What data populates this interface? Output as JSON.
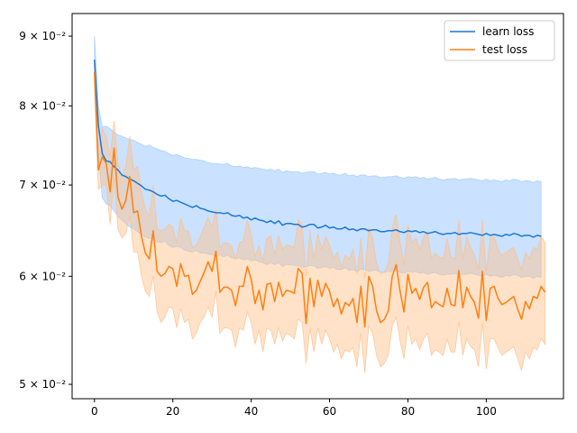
{
  "chart_data": {
    "type": "line",
    "title": "",
    "xlabel": "",
    "ylabel": "",
    "xlim": [
      -5.7,
      119.7
    ],
    "ylim": [
      0.0488,
      0.0935
    ],
    "yscale": "log",
    "grid": false,
    "legend_position": "top-right",
    "x_ticks": [
      0,
      20,
      40,
      60,
      80,
      100
    ],
    "y_ticks": [
      {
        "value": 0.05,
        "label": "5 × 10⁻²"
      },
      {
        "value": 0.06,
        "label": "6 × 10⁻²"
      },
      {
        "value": 0.07,
        "label": "7 × 10⁻²"
      },
      {
        "value": 0.08,
        "label": "8 × 10⁻²"
      },
      {
        "value": 0.09,
        "label": "9 × 10⁻²"
      }
    ],
    "series": [
      {
        "name": "learn loss",
        "color": "#1f77d4",
        "band_color": "#9ecbff",
        "band_opacity": 0.55,
        "x_start": 0,
        "values": [
          0.0865,
          0.0774,
          0.0738,
          0.0729,
          0.0728,
          0.0722,
          0.0718,
          0.0712,
          0.071,
          0.0707,
          0.0705,
          0.0702,
          0.0699,
          0.0695,
          0.0694,
          0.0692,
          0.0689,
          0.0687,
          0.0688,
          0.0684,
          0.0681,
          0.0682,
          0.068,
          0.0678,
          0.0676,
          0.0674,
          0.0676,
          0.0673,
          0.0672,
          0.067,
          0.0669,
          0.0668,
          0.0668,
          0.0667,
          0.0668,
          0.0665,
          0.0664,
          0.0665,
          0.0662,
          0.0663,
          0.066,
          0.0662,
          0.066,
          0.0659,
          0.0657,
          0.0659,
          0.0656,
          0.0659,
          0.0654,
          0.0656,
          0.0656,
          0.0655,
          0.0655,
          0.0652,
          0.0653,
          0.0655,
          0.0655,
          0.0651,
          0.0652,
          0.0654,
          0.0651,
          0.0652,
          0.065,
          0.065,
          0.0652,
          0.0649,
          0.065,
          0.0648,
          0.065,
          0.065,
          0.0648,
          0.0649,
          0.0649,
          0.0647,
          0.0647,
          0.0648,
          0.0648,
          0.0649,
          0.0647,
          0.0646,
          0.0648,
          0.0647,
          0.0648,
          0.0646,
          0.0647,
          0.0645,
          0.0646,
          0.0647,
          0.0645,
          0.0644,
          0.0645,
          0.0645,
          0.0646,
          0.0644,
          0.0645,
          0.0645,
          0.0646,
          0.0645,
          0.0644,
          0.0643,
          0.0645,
          0.0643,
          0.0644,
          0.0643,
          0.0642,
          0.0644,
          0.0643,
          0.0645,
          0.0644,
          0.0642,
          0.0643,
          0.0643,
          0.0641,
          0.0643,
          0.0642
        ],
        "lower": [
          0.0838,
          0.074,
          0.0685,
          0.0678,
          0.0676,
          0.067,
          0.0664,
          0.066,
          0.0656,
          0.0652,
          0.065,
          0.0647,
          0.0644,
          0.0641,
          0.064,
          0.0638,
          0.0636,
          0.0635,
          0.0637,
          0.0632,
          0.063,
          0.0631,
          0.063,
          0.0627,
          0.0626,
          0.0625,
          0.0627,
          0.0624,
          0.0624,
          0.0623,
          0.0622,
          0.0621,
          0.0622,
          0.062,
          0.0622,
          0.0619,
          0.0618,
          0.0619,
          0.0617,
          0.0618,
          0.0616,
          0.0617,
          0.0615,
          0.0614,
          0.0612,
          0.0614,
          0.0612,
          0.0614,
          0.061,
          0.0612,
          0.0612,
          0.0611,
          0.0611,
          0.0609,
          0.061,
          0.0611,
          0.0611,
          0.0608,
          0.0609,
          0.061,
          0.0608,
          0.0609,
          0.0607,
          0.0607,
          0.0609,
          0.0606,
          0.0607,
          0.0605,
          0.0607,
          0.0607,
          0.0605,
          0.0606,
          0.0606,
          0.0604,
          0.0604,
          0.0605,
          0.0605,
          0.0606,
          0.0604,
          0.0603,
          0.0605,
          0.0604,
          0.0605,
          0.0603,
          0.0604,
          0.0602,
          0.0603,
          0.0604,
          0.0602,
          0.0601,
          0.0602,
          0.0602,
          0.0603,
          0.0601,
          0.0602,
          0.0602,
          0.0603,
          0.0602,
          0.0601,
          0.06,
          0.0602,
          0.06,
          0.0601,
          0.06,
          0.0599,
          0.0601,
          0.06,
          0.0602,
          0.0601,
          0.0599,
          0.06,
          0.06,
          0.0598,
          0.06,
          0.0599
        ],
        "upper": [
          0.09,
          0.08,
          0.0772,
          0.0773,
          0.077,
          0.0765,
          0.0762,
          0.076,
          0.0758,
          0.0756,
          0.0755,
          0.0752,
          0.075,
          0.0747,
          0.0749,
          0.0746,
          0.0744,
          0.0742,
          0.0741,
          0.0738,
          0.0736,
          0.0737,
          0.0735,
          0.0733,
          0.0732,
          0.0731,
          0.0731,
          0.073,
          0.0729,
          0.0727,
          0.0726,
          0.0726,
          0.0725,
          0.0725,
          0.0726,
          0.0723,
          0.0722,
          0.0723,
          0.0721,
          0.0722,
          0.072,
          0.0721,
          0.072,
          0.0719,
          0.0718,
          0.0719,
          0.0717,
          0.0719,
          0.0715,
          0.0717,
          0.0716,
          0.0716,
          0.0716,
          0.0714,
          0.0715,
          0.0716,
          0.0716,
          0.0713,
          0.0714,
          0.0715,
          0.0713,
          0.0714,
          0.0712,
          0.0712,
          0.0714,
          0.0711,
          0.0712,
          0.071,
          0.0712,
          0.0712,
          0.071,
          0.0711,
          0.0711,
          0.0709,
          0.0709,
          0.071,
          0.071,
          0.0711,
          0.0709,
          0.0708,
          0.071,
          0.0709,
          0.071,
          0.0708,
          0.0709,
          0.0707,
          0.0708,
          0.0709,
          0.0707,
          0.0706,
          0.0707,
          0.0707,
          0.0708,
          0.0706,
          0.0707,
          0.0707,
          0.0708,
          0.0707,
          0.0706,
          0.0705,
          0.0707,
          0.0705,
          0.0706,
          0.0705,
          0.0704,
          0.0706,
          0.0705,
          0.0707,
          0.0706,
          0.0704,
          0.0705,
          0.0705,
          0.0703,
          0.0705,
          0.0704
        ]
      },
      {
        "name": "test loss",
        "color": "#ff7f0e",
        "band_color": "#ffbe86",
        "band_opacity": 0.45,
        "x_start": 0,
        "values": [
          0.0847,
          0.0718,
          0.0734,
          0.0726,
          0.0692,
          0.0745,
          0.0686,
          0.0672,
          0.0682,
          0.071,
          0.0668,
          0.067,
          0.0642,
          0.0624,
          0.0618,
          0.0648,
          0.0605,
          0.06,
          0.0603,
          0.061,
          0.0608,
          0.059,
          0.0613,
          0.06,
          0.0601,
          0.0582,
          0.0586,
          0.0595,
          0.0604,
          0.0615,
          0.0605,
          0.0626,
          0.0584,
          0.0589,
          0.0589,
          0.0586,
          0.0571,
          0.059,
          0.059,
          0.061,
          0.0597,
          0.0573,
          0.0586,
          0.0567,
          0.0592,
          0.0593,
          0.0575,
          0.0594,
          0.058,
          0.0586,
          0.0585,
          0.0583,
          0.0608,
          0.0603,
          0.0554,
          0.0598,
          0.057,
          0.0596,
          0.058,
          0.0593,
          0.0585,
          0.057,
          0.0578,
          0.0563,
          0.0574,
          0.0571,
          0.0578,
          0.0555,
          0.059,
          0.0551,
          0.06,
          0.059,
          0.0566,
          0.0555,
          0.0558,
          0.0566,
          0.06,
          0.0612,
          0.0585,
          0.0565,
          0.0602,
          0.0583,
          0.0588,
          0.0577,
          0.0589,
          0.0594,
          0.0569,
          0.0575,
          0.0572,
          0.057,
          0.0588,
          0.0572,
          0.0571,
          0.0606,
          0.0569,
          0.0589,
          0.058,
          0.0574,
          0.0559,
          0.0605,
          0.0557,
          0.0588,
          0.059,
          0.0578,
          0.0572,
          0.0574,
          0.0577,
          0.058,
          0.0568,
          0.0558,
          0.0575,
          0.0568,
          0.058,
          0.0578,
          0.059,
          0.0584
        ],
        "lower": [
          0.083,
          0.0695,
          0.07,
          0.07,
          0.0655,
          0.071,
          0.065,
          0.064,
          0.0645,
          0.0665,
          0.0625,
          0.0625,
          0.06,
          0.0585,
          0.058,
          0.06,
          0.0565,
          0.0555,
          0.056,
          0.057,
          0.0568,
          0.055,
          0.0568,
          0.0555,
          0.0558,
          0.054,
          0.0545,
          0.0555,
          0.056,
          0.057,
          0.056,
          0.0585,
          0.0545,
          0.055,
          0.055,
          0.0548,
          0.0532,
          0.055,
          0.0548,
          0.0565,
          0.0555,
          0.0535,
          0.0548,
          0.0528,
          0.055,
          0.0548,
          0.0535,
          0.055,
          0.0538,
          0.0545,
          0.0543,
          0.054,
          0.0558,
          0.0555,
          0.0518,
          0.055,
          0.0528,
          0.055,
          0.0535,
          0.0548,
          0.054,
          0.0528,
          0.0535,
          0.0522,
          0.053,
          0.0528,
          0.0532,
          0.0515,
          0.0545,
          0.051,
          0.0552,
          0.0545,
          0.0525,
          0.0515,
          0.0518,
          0.0525,
          0.0552,
          0.056,
          0.0538,
          0.0522,
          0.0552,
          0.0535,
          0.054,
          0.053,
          0.054,
          0.0545,
          0.0525,
          0.053,
          0.0528,
          0.0525,
          0.054,
          0.0528,
          0.0528,
          0.0556,
          0.0525,
          0.054,
          0.0533,
          0.053,
          0.0515,
          0.0555,
          0.0513,
          0.054,
          0.054,
          0.0532,
          0.0525,
          0.0528,
          0.053,
          0.0533,
          0.0522,
          0.0512,
          0.0528,
          0.0522,
          0.0532,
          0.053,
          0.054,
          0.0535
        ],
        "upper": [
          0.086,
          0.0745,
          0.077,
          0.076,
          0.0735,
          0.078,
          0.0728,
          0.071,
          0.0722,
          0.076,
          0.0718,
          0.0722,
          0.0692,
          0.0672,
          0.0665,
          0.07,
          0.065,
          0.0648,
          0.065,
          0.0655,
          0.0652,
          0.0635,
          0.0662,
          0.0648,
          0.0648,
          0.063,
          0.0633,
          0.0642,
          0.0652,
          0.0663,
          0.0652,
          0.0672,
          0.063,
          0.0635,
          0.0635,
          0.0632,
          0.0618,
          0.0635,
          0.0637,
          0.066,
          0.0645,
          0.062,
          0.0632,
          0.0615,
          0.064,
          0.0642,
          0.0622,
          0.0643,
          0.0628,
          0.0633,
          0.0632,
          0.063,
          0.066,
          0.0655,
          0.06,
          0.0648,
          0.0618,
          0.0645,
          0.0628,
          0.0642,
          0.0633,
          0.0618,
          0.0625,
          0.061,
          0.0622,
          0.0618,
          0.0628,
          0.0602,
          0.064,
          0.0598,
          0.0652,
          0.064,
          0.0613,
          0.0602,
          0.0605,
          0.0613,
          0.0652,
          0.0666,
          0.0636,
          0.0612,
          0.0655,
          0.0635,
          0.064,
          0.0628,
          0.0642,
          0.0647,
          0.0618,
          0.0624,
          0.062,
          0.0618,
          0.064,
          0.062,
          0.0618,
          0.066,
          0.0617,
          0.0642,
          0.063,
          0.0622,
          0.0607,
          0.066,
          0.0605,
          0.064,
          0.0642,
          0.0628,
          0.0622,
          0.0624,
          0.0628,
          0.063,
          0.0618,
          0.0607,
          0.0625,
          0.0618,
          0.063,
          0.0628,
          0.0642,
          0.0635
        ]
      }
    ]
  }
}
